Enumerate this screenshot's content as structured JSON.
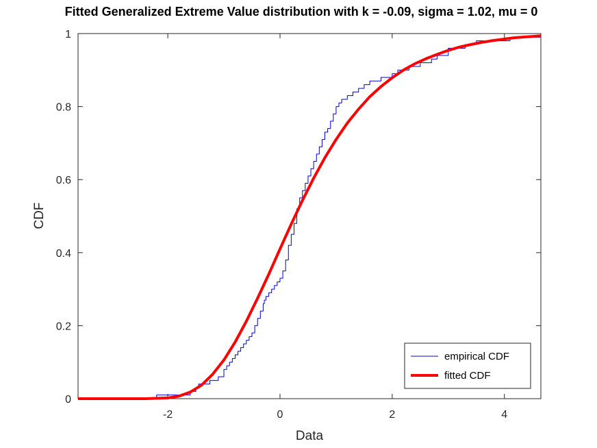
{
  "chart_data": {
    "type": "line",
    "title": "Fitted Generalized Extreme Value distribution with k = -0.09, sigma = 1.02, mu = 0",
    "xlabel": "Data",
    "ylabel": "CDF",
    "xlim": [
      -3.6,
      4.65
    ],
    "ylim": [
      0,
      1
    ],
    "xticks": [
      -2,
      0,
      2,
      4
    ],
    "xtick_labels": [
      "-2",
      "0",
      "2",
      "4"
    ],
    "yticks": [
      0,
      0.2,
      0.4,
      0.6,
      0.8,
      1
    ],
    "ytick_labels": [
      "0",
      "0.2",
      "0.4",
      "0.6",
      "0.8",
      "1"
    ],
    "grid": false,
    "legend_position": "bottom-right",
    "series": [
      {
        "name": "empirical CDF",
        "style": "step",
        "color": "#0000cc",
        "x": [
          -3.6,
          -2.2,
          -1.6,
          -1.5,
          -1.45,
          -1.4,
          -1.25,
          -1.1,
          -1.0,
          -0.95,
          -0.9,
          -0.85,
          -0.8,
          -0.75,
          -0.7,
          -0.65,
          -0.6,
          -0.55,
          -0.5,
          -0.45,
          -0.4,
          -0.35,
          -0.3,
          -0.28,
          -0.25,
          -0.2,
          -0.15,
          -0.1,
          -0.05,
          0.0,
          0.05,
          0.1,
          0.15,
          0.2,
          0.25,
          0.3,
          0.35,
          0.4,
          0.45,
          0.5,
          0.55,
          0.6,
          0.65,
          0.7,
          0.75,
          0.8,
          0.85,
          0.9,
          0.95,
          1.0,
          1.05,
          1.1,
          1.2,
          1.3,
          1.4,
          1.5,
          1.6,
          1.7,
          1.8,
          1.9,
          2.0,
          2.1,
          2.2,
          2.3,
          2.5,
          2.7,
          2.8,
          3.0,
          3.3,
          3.5,
          4.1,
          4.65
        ],
        "y": [
          0.0,
          0.01,
          0.02,
          0.03,
          0.04,
          0.04,
          0.05,
          0.06,
          0.08,
          0.09,
          0.1,
          0.11,
          0.12,
          0.13,
          0.14,
          0.15,
          0.16,
          0.17,
          0.18,
          0.2,
          0.22,
          0.24,
          0.26,
          0.27,
          0.28,
          0.29,
          0.3,
          0.31,
          0.32,
          0.33,
          0.35,
          0.38,
          0.42,
          0.45,
          0.48,
          0.52,
          0.55,
          0.57,
          0.59,
          0.61,
          0.63,
          0.65,
          0.67,
          0.69,
          0.71,
          0.73,
          0.74,
          0.76,
          0.78,
          0.8,
          0.81,
          0.82,
          0.83,
          0.84,
          0.85,
          0.86,
          0.87,
          0.87,
          0.88,
          0.88,
          0.89,
          0.9,
          0.9,
          0.91,
          0.92,
          0.93,
          0.94,
          0.96,
          0.97,
          0.98,
          0.99,
          0.99
        ]
      },
      {
        "name": "fitted CDF",
        "style": "line",
        "color": "#ff0000",
        "x": [
          -3.6,
          -2.8,
          -2.4,
          -2.0,
          -1.8,
          -1.6,
          -1.4,
          -1.2,
          -1.0,
          -0.8,
          -0.6,
          -0.4,
          -0.2,
          0.0,
          0.2,
          0.4,
          0.6,
          0.8,
          1.0,
          1.2,
          1.4,
          1.6,
          1.8,
          2.0,
          2.2,
          2.4,
          2.6,
          2.8,
          3.0,
          3.2,
          3.4,
          3.6,
          3.8,
          4.0,
          4.2,
          4.4,
          4.65
        ],
        "y": [
          0.0,
          0.0,
          0.0001,
          0.002,
          0.007,
          0.018,
          0.037,
          0.067,
          0.106,
          0.155,
          0.212,
          0.275,
          0.341,
          0.41,
          0.478,
          0.543,
          0.604,
          0.66,
          0.71,
          0.755,
          0.793,
          0.827,
          0.855,
          0.879,
          0.9,
          0.917,
          0.931,
          0.943,
          0.954,
          0.963,
          0.97,
          0.976,
          0.981,
          0.985,
          0.989,
          0.991,
          0.994
        ]
      }
    ]
  }
}
